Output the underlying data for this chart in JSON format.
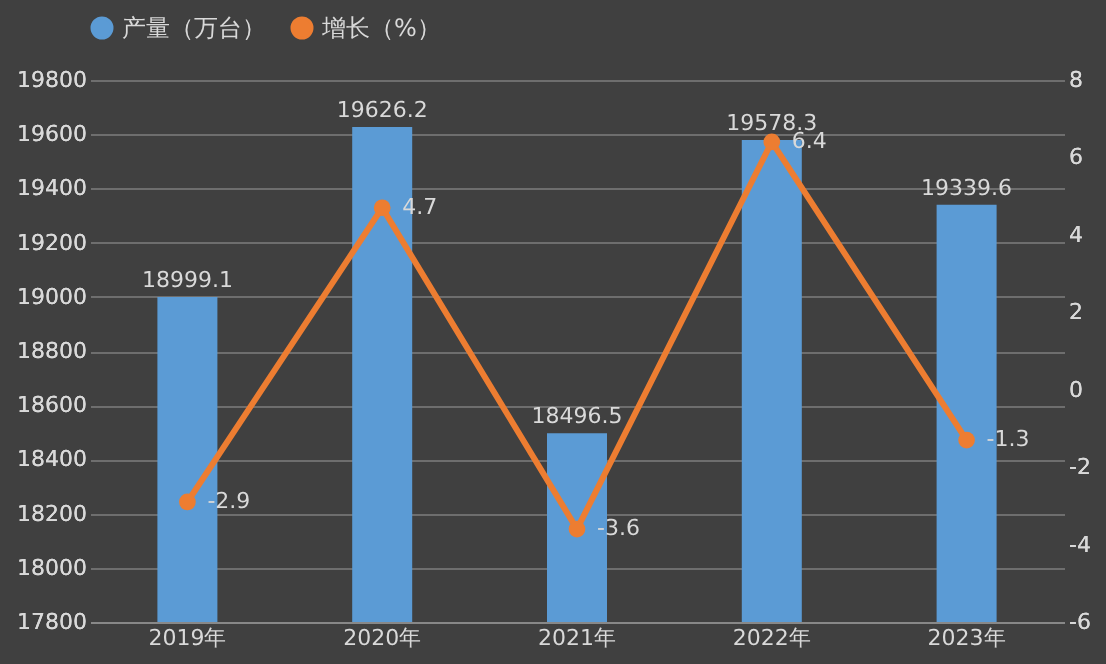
{
  "chart_data": {
    "type": "bar",
    "categories": [
      "2019年",
      "2020年",
      "2021年",
      "2022年",
      "2023年"
    ],
    "series": [
      {
        "name": "产量（万台）",
        "color": "#5b9bd5",
        "values": [
          18999.1,
          19626.2,
          18496.5,
          19578.3,
          19339.6
        ]
      },
      {
        "name": "增长（%）",
        "type": "line",
        "axis": "y2",
        "color": "#ed7d31",
        "values": [
          -2.9,
          4.7,
          -3.6,
          6.4,
          -1.3
        ]
      }
    ],
    "ylim": [
      17800,
      19800
    ],
    "yticks": [
      17800,
      18000,
      18200,
      18400,
      18600,
      18800,
      19000,
      19200,
      19400,
      19600,
      19800
    ],
    "y2lim": [
      -6,
      8
    ],
    "y2ticks": [
      -6,
      -4,
      -2,
      0,
      2,
      4,
      6,
      8
    ],
    "grid": "y",
    "legend": "top",
    "marker": "circle",
    "data_labels": true
  }
}
